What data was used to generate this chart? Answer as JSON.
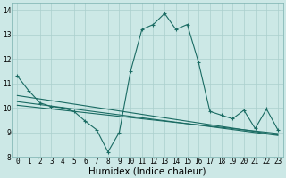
{
  "xlabel": "Humidex (Indice chaleur)",
  "background_color": "#cce8e6",
  "grid_color": "#aacfcd",
  "line_color": "#1a6b63",
  "xlim": [
    -0.5,
    23.5
  ],
  "ylim": [
    8,
    14.3
  ],
  "xticks": [
    0,
    1,
    2,
    3,
    4,
    5,
    6,
    7,
    8,
    9,
    10,
    11,
    12,
    13,
    14,
    15,
    16,
    17,
    18,
    19,
    20,
    21,
    22,
    23
  ],
  "yticks": [
    8,
    9,
    10,
    11,
    12,
    13,
    14
  ],
  "line1_x": [
    0,
    1,
    2,
    3,
    4,
    5,
    6,
    7,
    8,
    9,
    10,
    11,
    12,
    13,
    14,
    15,
    16,
    17,
    18,
    19,
    20,
    21,
    22,
    23
  ],
  "line1_y": [
    11.3,
    10.7,
    10.2,
    10.05,
    10.0,
    9.85,
    9.45,
    9.1,
    8.2,
    9.0,
    11.5,
    13.2,
    13.4,
    13.85,
    13.2,
    13.4,
    11.85,
    9.85,
    9.7,
    9.55,
    9.9,
    9.15,
    9.95,
    9.1
  ],
  "line2_x": [
    0,
    1,
    2,
    3,
    4,
    5,
    6,
    7,
    8,
    9,
    10,
    11,
    12,
    13,
    14,
    15,
    16,
    17,
    18,
    19,
    20,
    21,
    22,
    23
  ],
  "line2_y": [
    10.25,
    10.19,
    10.13,
    10.07,
    10.01,
    9.95,
    9.89,
    9.83,
    9.77,
    9.71,
    9.65,
    9.59,
    9.53,
    9.47,
    9.41,
    9.35,
    9.29,
    9.23,
    9.17,
    9.11,
    9.05,
    8.99,
    8.93,
    8.87
  ],
  "line3_x": [
    0,
    1,
    2,
    3,
    4,
    5,
    6,
    7,
    8,
    9,
    10,
    11,
    12,
    13,
    14,
    15,
    16,
    17,
    18,
    19,
    20,
    21,
    22,
    23
  ],
  "line3_y": [
    10.5,
    10.43,
    10.36,
    10.29,
    10.22,
    10.15,
    10.08,
    10.01,
    9.94,
    9.87,
    9.8,
    9.73,
    9.66,
    9.59,
    9.52,
    9.45,
    9.38,
    9.31,
    9.24,
    9.17,
    9.1,
    9.03,
    8.96,
    8.89
  ],
  "line4_x": [
    0,
    1,
    2,
    3,
    4,
    5,
    6,
    7,
    8,
    9,
    10,
    11,
    12,
    13,
    14,
    15,
    16,
    17,
    18,
    19,
    20,
    21,
    22,
    23
  ],
  "line4_y": [
    10.1,
    10.05,
    10.0,
    9.95,
    9.9,
    9.85,
    9.8,
    9.75,
    9.7,
    9.65,
    9.6,
    9.55,
    9.5,
    9.45,
    9.4,
    9.35,
    9.3,
    9.25,
    9.2,
    9.15,
    9.1,
    9.05,
    9.0,
    8.95
  ],
  "tick_fontsize": 5.5,
  "xlabel_fontsize": 7.5
}
